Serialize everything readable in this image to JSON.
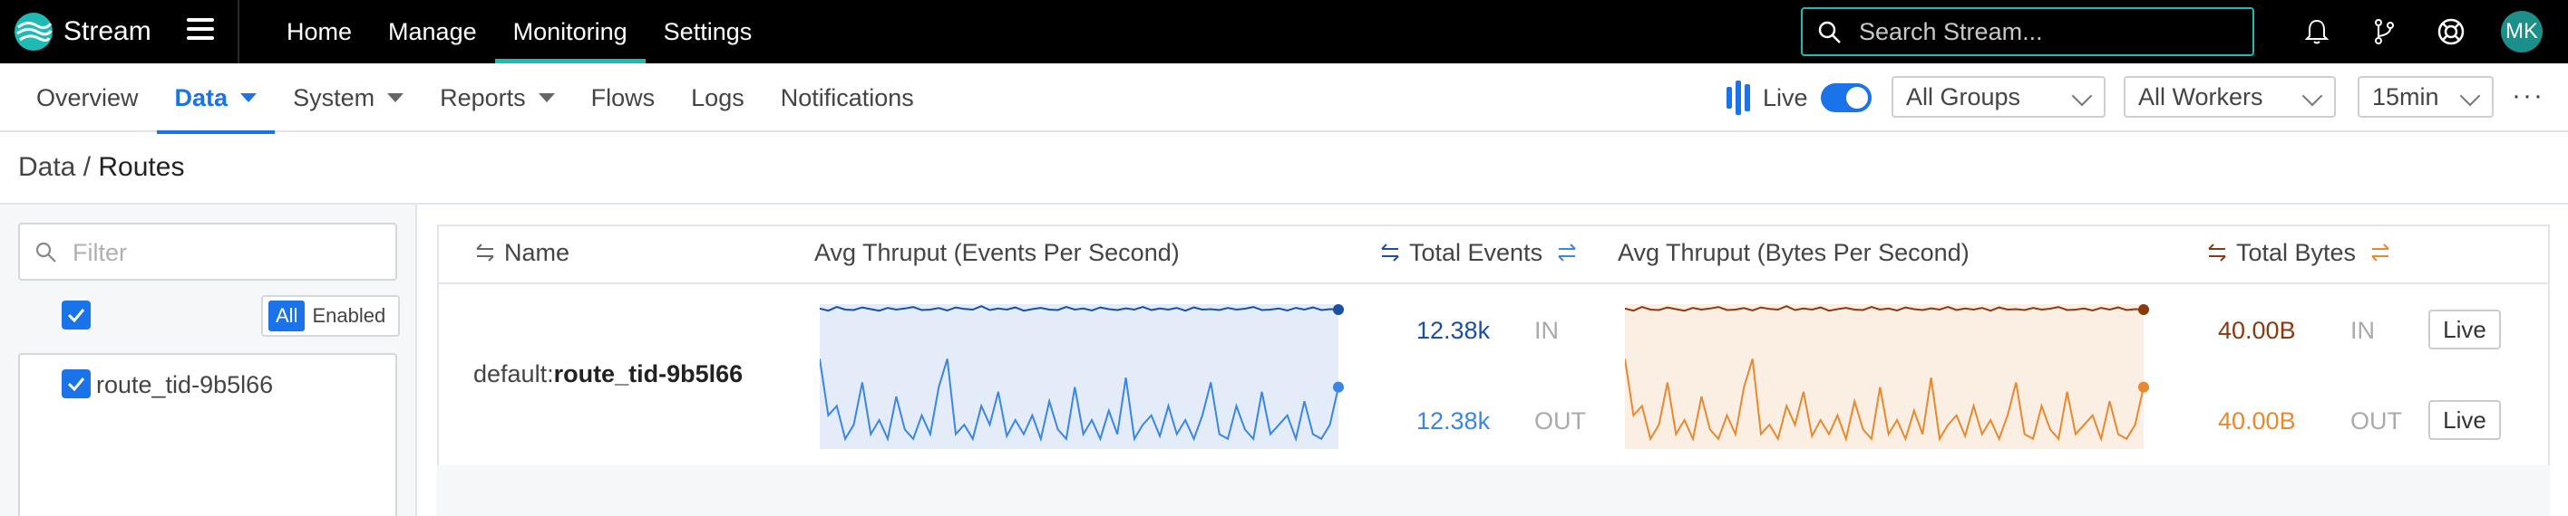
{
  "app": {
    "brand": "Stream",
    "accent": "#1dbbb3",
    "primary": "#1a73e8"
  },
  "topnav": {
    "items": [
      {
        "label": "Home"
      },
      {
        "label": "Manage"
      },
      {
        "label": "Monitoring",
        "active": true
      },
      {
        "label": "Settings"
      }
    ]
  },
  "search": {
    "placeholder": "Search Stream..."
  },
  "user": {
    "initials": "MK"
  },
  "icons": [
    "menu-icon",
    "search-icon",
    "bell-icon",
    "git-branch-icon",
    "help-lifebuoy-icon"
  ],
  "subnav": {
    "tabs": [
      {
        "label": "Overview"
      },
      {
        "label": "Data",
        "active": true,
        "dropdown": true
      },
      {
        "label": "System",
        "dropdown": true
      },
      {
        "label": "Reports",
        "dropdown": true
      },
      {
        "label": "Flows"
      },
      {
        "label": "Logs"
      },
      {
        "label": "Notifications"
      }
    ],
    "live_label": "Live",
    "live_on": true,
    "groups_select": "All Groups",
    "workers_select": "All Workers",
    "time_select": "15min"
  },
  "breadcrumb": {
    "parent": "Data",
    "separator": " / ",
    "current": "Routes"
  },
  "sidebar": {
    "filter_placeholder": "Filter",
    "all_checked": true,
    "toggle": {
      "all": "All",
      "enabled": "Enabled"
    },
    "routes": [
      {
        "label": "route_tid-9b5l66",
        "checked": true
      }
    ]
  },
  "table": {
    "columns": {
      "name": "Name",
      "avg_eps": "Avg Thruput (Events Per Second)",
      "total_events": "Total Events",
      "avg_bps": "Avg Thruput (Bytes Per Second)",
      "total_bytes": "Total Bytes"
    },
    "rows": [
      {
        "name_prefix": "default:",
        "name": "route_tid-9b5l66",
        "events_in": "12.38k",
        "events_out": "12.38k",
        "bytes_in": "40.00B",
        "bytes_out": "40.00B",
        "in_label": "IN",
        "out_label": "OUT",
        "live_button": "Live"
      }
    ],
    "colors": {
      "events_in": "#1a4fa3",
      "events_out": "#3a86e6",
      "events_fill": "#e3ecf8",
      "bytes_in": "#8b3a0f",
      "bytes_out": "#e8892f",
      "bytes_fill": "#fbeee3"
    },
    "sparklines": {
      "events_in": [
        0.55,
        0.45,
        0.62,
        0.5,
        0.48,
        0.6,
        0.52,
        0.45,
        0.58,
        0.5,
        0.55,
        0.62,
        0.48,
        0.5,
        0.57,
        0.46,
        0.6,
        0.53,
        0.5,
        0.66,
        0.48,
        0.55,
        0.5,
        0.6,
        0.45,
        0.52,
        0.58,
        0.5,
        0.48,
        0.62,
        0.5,
        0.55,
        0.46,
        0.6,
        0.52,
        0.48,
        0.56,
        0.5,
        0.62,
        0.48,
        0.55,
        0.5,
        0.58,
        0.45,
        0.6,
        0.5,
        0.52,
        0.48,
        0.58,
        0.5,
        0.54,
        0.62,
        0.48,
        0.5,
        0.55,
        0.46,
        0.58,
        0.5,
        0.6,
        0.48,
        0.52,
        0.5
      ],
      "events_out": [
        0.9,
        0.3,
        0.4,
        0.05,
        0.2,
        0.65,
        0.1,
        0.25,
        0.05,
        0.5,
        0.15,
        0.05,
        0.3,
        0.1,
        0.6,
        0.9,
        0.1,
        0.2,
        0.05,
        0.4,
        0.2,
        0.55,
        0.08,
        0.25,
        0.1,
        0.3,
        0.05,
        0.45,
        0.15,
        0.05,
        0.6,
        0.1,
        0.25,
        0.05,
        0.35,
        0.1,
        0.7,
        0.05,
        0.2,
        0.3,
        0.08,
        0.4,
        0.1,
        0.25,
        0.05,
        0.3,
        0.65,
        0.1,
        0.05,
        0.4,
        0.15,
        0.05,
        0.55,
        0.1,
        0.2,
        0.3,
        0.05,
        0.45,
        0.1,
        0.05,
        0.2,
        0.6
      ],
      "bytes_in": [
        0.55,
        0.45,
        0.62,
        0.5,
        0.48,
        0.6,
        0.52,
        0.45,
        0.58,
        0.5,
        0.55,
        0.62,
        0.48,
        0.5,
        0.57,
        0.46,
        0.6,
        0.53,
        0.5,
        0.66,
        0.48,
        0.55,
        0.5,
        0.6,
        0.45,
        0.52,
        0.58,
        0.5,
        0.48,
        0.62,
        0.5,
        0.55,
        0.46,
        0.6,
        0.52,
        0.48,
        0.56,
        0.5,
        0.62,
        0.48,
        0.55,
        0.5,
        0.58,
        0.45,
        0.6,
        0.5,
        0.52,
        0.48,
        0.58,
        0.5,
        0.54,
        0.62,
        0.48,
        0.5,
        0.55,
        0.46,
        0.58,
        0.5,
        0.6,
        0.48,
        0.52,
        0.5
      ],
      "bytes_out": [
        0.9,
        0.3,
        0.4,
        0.05,
        0.2,
        0.65,
        0.1,
        0.25,
        0.05,
        0.5,
        0.15,
        0.05,
        0.3,
        0.1,
        0.6,
        0.9,
        0.1,
        0.2,
        0.05,
        0.4,
        0.2,
        0.55,
        0.08,
        0.25,
        0.1,
        0.3,
        0.05,
        0.45,
        0.15,
        0.05,
        0.6,
        0.1,
        0.25,
        0.05,
        0.35,
        0.1,
        0.7,
        0.05,
        0.2,
        0.3,
        0.08,
        0.4,
        0.1,
        0.25,
        0.05,
        0.3,
        0.65,
        0.1,
        0.05,
        0.4,
        0.15,
        0.05,
        0.55,
        0.1,
        0.2,
        0.3,
        0.05,
        0.45,
        0.1,
        0.05,
        0.2,
        0.6
      ]
    }
  }
}
